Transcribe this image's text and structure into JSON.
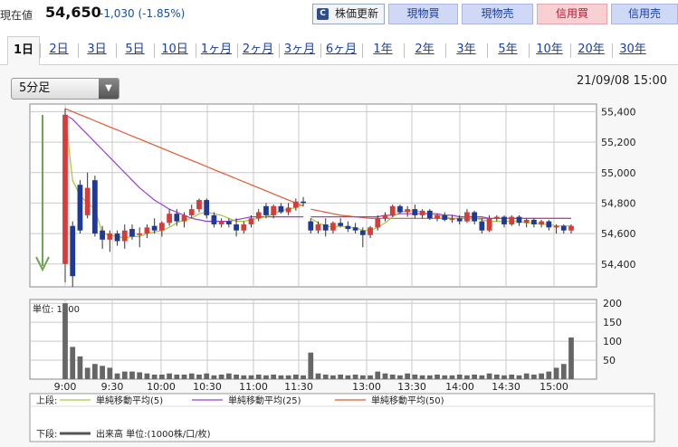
{
  "header": {
    "price_label": "現在値",
    "price_value": "54,650",
    "price_change": "-1,030 (-1.85%)",
    "refresh_label": "株価更新",
    "refresh_icon": "refresh-icon",
    "buttons": [
      {
        "label": "現物買",
        "color": "#cfd8f5"
      },
      {
        "label": "現物売",
        "color": "#cfd8f5"
      },
      {
        "label": "信用買",
        "color": "#f8cfd3"
      },
      {
        "label": "信用売",
        "color": "#cfd8f5"
      }
    ]
  },
  "tabs": [
    "1日",
    "2日",
    "3日",
    "5日",
    "10日",
    "1ヶ月",
    "2ヶ月",
    "3ヶ月",
    "6ヶ月",
    "1年",
    "2年",
    "3年",
    "5年",
    "10年",
    "20年",
    "30年"
  ],
  "active_tab": "1日",
  "interval_select": {
    "value": "5分足"
  },
  "datetime": "21/09/08 15:00",
  "chart_data": {
    "type": "candlestick",
    "price_axis": {
      "ticks": [
        "55,400",
        "55,200",
        "55,000",
        "54,800",
        "54,600",
        "54,400"
      ],
      "ylim": [
        54250,
        55450
      ]
    },
    "volume_axis": {
      "unit_label": "単位: 1000",
      "ticks": [
        "200",
        "150",
        "100",
        "50"
      ],
      "ylim": [
        0,
        210
      ]
    },
    "x_ticks": [
      "9:00",
      "9:30",
      "10:00",
      "10:30",
      "11:00",
      "11:30",
      "13:00",
      "13:30",
      "14:00",
      "14:30",
      "15:00"
    ],
    "up_color": "#d93b3b",
    "down_color": "#1f3a96",
    "candles": [
      {
        "o": 54400,
        "h": 55420,
        "l": 54280,
        "c": 55380
      },
      {
        "o": 54650,
        "h": 54680,
        "l": 54250,
        "c": 54320
      },
      {
        "o": 54920,
        "h": 54950,
        "l": 54600,
        "c": 54620
      },
      {
        "o": 54720,
        "h": 55000,
        "l": 54700,
        "c": 54900
      },
      {
        "o": 54950,
        "h": 54980,
        "l": 54580,
        "c": 54600
      },
      {
        "o": 54620,
        "h": 54650,
        "l": 54500,
        "c": 54560
      },
      {
        "o": 54560,
        "h": 54620,
        "l": 54480,
        "c": 54600
      },
      {
        "o": 54600,
        "h": 54620,
        "l": 54520,
        "c": 54550
      },
      {
        "o": 54550,
        "h": 54660,
        "l": 54500,
        "c": 54620
      },
      {
        "o": 54630,
        "h": 54660,
        "l": 54560,
        "c": 54580
      },
      {
        "o": 54590,
        "h": 54640,
        "l": 54510,
        "c": 54600
      },
      {
        "o": 54600,
        "h": 54660,
        "l": 54570,
        "c": 54640
      },
      {
        "o": 54650,
        "h": 54700,
        "l": 54600,
        "c": 54620
      },
      {
        "o": 54620,
        "h": 54680,
        "l": 54580,
        "c": 54670
      },
      {
        "o": 54670,
        "h": 54760,
        "l": 54650,
        "c": 54730
      },
      {
        "o": 54730,
        "h": 54760,
        "l": 54650,
        "c": 54680
      },
      {
        "o": 54680,
        "h": 54740,
        "l": 54640,
        "c": 54720
      },
      {
        "o": 54720,
        "h": 54790,
        "l": 54700,
        "c": 54760
      },
      {
        "o": 54760,
        "h": 54830,
        "l": 54740,
        "c": 54820
      },
      {
        "o": 54820,
        "h": 54830,
        "l": 54700,
        "c": 54720
      },
      {
        "o": 54720,
        "h": 54740,
        "l": 54640,
        "c": 54660
      },
      {
        "o": 54660,
        "h": 54700,
        "l": 54640,
        "c": 54680
      },
      {
        "o": 54680,
        "h": 54700,
        "l": 54640,
        "c": 54660
      },
      {
        "o": 54660,
        "h": 54700,
        "l": 54580,
        "c": 54620
      },
      {
        "o": 54620,
        "h": 54680,
        "l": 54600,
        "c": 54660
      },
      {
        "o": 54660,
        "h": 54720,
        "l": 54640,
        "c": 54700
      },
      {
        "o": 54700,
        "h": 54760,
        "l": 54680,
        "c": 54740
      },
      {
        "o": 54780,
        "h": 54800,
        "l": 54700,
        "c": 54720
      },
      {
        "o": 54720,
        "h": 54790,
        "l": 54700,
        "c": 54780
      },
      {
        "o": 54780,
        "h": 54800,
        "l": 54730,
        "c": 54740
      },
      {
        "o": 54740,
        "h": 54800,
        "l": 54720,
        "c": 54770
      },
      {
        "o": 54770,
        "h": 54830,
        "l": 54750,
        "c": 54810
      },
      {
        "o": 54810,
        "h": 54840,
        "l": 54780,
        "c": 54800
      },
      {
        "o": 54680,
        "h": 54700,
        "l": 54600,
        "c": 54620
      },
      {
        "o": 54620,
        "h": 54680,
        "l": 54600,
        "c": 54660
      },
      {
        "o": 54660,
        "h": 54700,
        "l": 54580,
        "c": 54620
      },
      {
        "o": 54620,
        "h": 54680,
        "l": 54600,
        "c": 54670
      },
      {
        "o": 54670,
        "h": 54700,
        "l": 54640,
        "c": 54650
      },
      {
        "o": 54650,
        "h": 54680,
        "l": 54610,
        "c": 54630
      },
      {
        "o": 54640,
        "h": 54670,
        "l": 54600,
        "c": 54620
      },
      {
        "o": 54620,
        "h": 54640,
        "l": 54510,
        "c": 54590
      },
      {
        "o": 54590,
        "h": 54650,
        "l": 54570,
        "c": 54640
      },
      {
        "o": 54640,
        "h": 54720,
        "l": 54620,
        "c": 54700
      },
      {
        "o": 54700,
        "h": 54740,
        "l": 54680,
        "c": 54720
      },
      {
        "o": 54720,
        "h": 54790,
        "l": 54710,
        "c": 54780
      },
      {
        "o": 54780,
        "h": 54790,
        "l": 54730,
        "c": 54740
      },
      {
        "o": 54740,
        "h": 54780,
        "l": 54710,
        "c": 54760
      },
      {
        "o": 54760,
        "h": 54790,
        "l": 54700,
        "c": 54720
      },
      {
        "o": 54720,
        "h": 54760,
        "l": 54700,
        "c": 54750
      },
      {
        "o": 54750,
        "h": 54760,
        "l": 54690,
        "c": 54700
      },
      {
        "o": 54700,
        "h": 54730,
        "l": 54680,
        "c": 54720
      },
      {
        "o": 54720,
        "h": 54740,
        "l": 54680,
        "c": 54690
      },
      {
        "o": 54690,
        "h": 54720,
        "l": 54670,
        "c": 54700
      },
      {
        "o": 54700,
        "h": 54720,
        "l": 54660,
        "c": 54680
      },
      {
        "o": 54680,
        "h": 54760,
        "l": 54670,
        "c": 54740
      },
      {
        "o": 54740,
        "h": 54750,
        "l": 54660,
        "c": 54680
      },
      {
        "o": 54680,
        "h": 54700,
        "l": 54600,
        "c": 54620
      },
      {
        "o": 54620,
        "h": 54720,
        "l": 54610,
        "c": 54700
      },
      {
        "o": 54700,
        "h": 54720,
        "l": 54680,
        "c": 54710
      },
      {
        "o": 54710,
        "h": 54720,
        "l": 54640,
        "c": 54660
      },
      {
        "o": 54660,
        "h": 54720,
        "l": 54650,
        "c": 54710
      },
      {
        "o": 54710,
        "h": 54720,
        "l": 54650,
        "c": 54670
      },
      {
        "o": 54670,
        "h": 54700,
        "l": 54640,
        "c": 54690
      },
      {
        "o": 54690,
        "h": 54700,
        "l": 54640,
        "c": 54660
      },
      {
        "o": 54660,
        "h": 54690,
        "l": 54640,
        "c": 54680
      },
      {
        "o": 54680,
        "h": 54690,
        "l": 54620,
        "c": 54640
      },
      {
        "o": 54640,
        "h": 54660,
        "l": 54600,
        "c": 54650
      },
      {
        "o": 54650,
        "h": 54660,
        "l": 54600,
        "c": 54620
      },
      {
        "o": 54620,
        "h": 54660,
        "l": 54600,
        "c": 54650
      }
    ],
    "session_breaks": [
      33
    ],
    "volume": [
      200,
      85,
      60,
      30,
      40,
      35,
      30,
      15,
      20,
      20,
      18,
      15,
      12,
      12,
      15,
      12,
      12,
      15,
      12,
      15,
      10,
      12,
      15,
      12,
      10,
      10,
      12,
      10,
      12,
      10,
      10,
      12,
      10,
      70,
      15,
      12,
      10,
      12,
      10,
      12,
      10,
      10,
      20,
      15,
      12,
      10,
      15,
      12,
      10,
      10,
      12,
      10,
      10,
      12,
      10,
      12,
      10,
      15,
      12,
      10,
      12,
      10,
      15,
      12,
      15,
      20,
      30,
      40,
      110
    ],
    "ma5": [
      55380,
      54950,
      54850,
      54800,
      54760,
      54600,
      54590,
      54580,
      54570,
      54580,
      54580,
      54600,
      54610,
      54620,
      54640,
      54670,
      54690,
      54700,
      54730,
      54740,
      54730,
      54720,
      54700,
      54680,
      54680,
      54690,
      54700,
      54710,
      54730,
      54750,
      54760,
      54770,
      54790,
      54700,
      54670,
      54650,
      54640,
      54650,
      54640,
      54640,
      54620,
      54620,
      54640,
      54670,
      54710,
      54740,
      54750,
      54750,
      54740,
      54730,
      54720,
      54710,
      54700,
      54700,
      54700,
      54700,
      54690,
      54680,
      54680,
      54680,
      54680,
      54680,
      54670,
      54670,
      54660,
      54660,
      54650,
      54650,
      54650
    ],
    "ma25": [
      55380,
      55350,
      55300,
      55250,
      55200,
      55150,
      55100,
      55050,
      55000,
      54950,
      54900,
      54860,
      54820,
      54790,
      54760,
      54740,
      54720,
      54700,
      54690,
      54680,
      54680,
      54680,
      54680,
      54690,
      54700,
      54710,
      54710,
      54710,
      54710,
      54710,
      54710,
      54710,
      54710,
      54710,
      54710,
      54710,
      54710,
      54710,
      54710,
      54710,
      54710,
      54710,
      54710,
      54720,
      54720,
      54730,
      54730,
      54730,
      54730,
      54730,
      54730,
      54720,
      54720,
      54710,
      54710,
      54710,
      54710,
      54700,
      54700,
      54700,
      54700,
      54700,
      54700,
      54700,
      54700,
      54700,
      54700,
      54700,
      54700
    ],
    "ma50": [
      55420,
      55400,
      55380,
      55360,
      55340,
      55320,
      55300,
      55280,
      55260,
      55240,
      55220,
      55200,
      55180,
      55160,
      55140,
      55120,
      55100,
      55080,
      55060,
      55040,
      55020,
      55000,
      54980,
      54960,
      54940,
      54920,
      54900,
      54880,
      54860,
      54840,
      54820,
      54800,
      54780,
      54760,
      54750,
      54740,
      54730,
      54720,
      54715,
      54710,
      54705,
      54700,
      54700,
      54700,
      54700,
      54700,
      54700,
      54700,
      54700,
      54700,
      54700,
      54700,
      54700,
      54700,
      54700,
      54700,
      54700,
      54700,
      54700,
      54700,
      54700,
      54700,
      54700,
      54700,
      54700,
      54700,
      54700,
      54700,
      54700
    ],
    "ma_colors": {
      "ma5": "#a5c93a",
      "ma25": "#9a3fd6",
      "ma50": "#e2582f"
    },
    "legend": {
      "upper_label": "上段:",
      "ma5_label": "単純移動平均(5)",
      "ma25_label": "単純移動平均(25)",
      "ma50_label": "単純移動平均(50)",
      "lower_label": "下段:",
      "volume_label": "出来高 単位:(1000株/口/枚)"
    },
    "arrow_color": "#6aa84f"
  }
}
